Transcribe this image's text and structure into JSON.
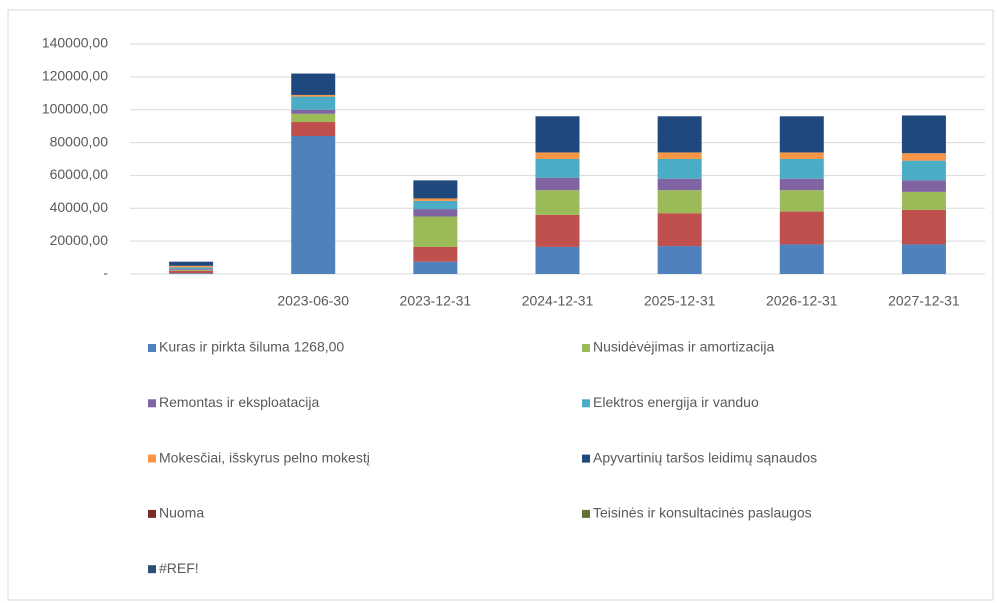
{
  "chart_data": {
    "type": "stacked_bar",
    "categories": [
      null,
      "2023-06-30",
      "2023-12-31",
      "2024-12-31",
      "2025-12-31",
      "2026-12-31",
      "2027-12-31"
    ],
    "series": [
      {
        "name": "Kuras ir pirkta šiluma  1268,00",
        "color": "#4f81bd",
        "values": [
          500,
          84000,
          7500,
          16500,
          17000,
          18000,
          18000
        ]
      },
      {
        "color": "#c0504d",
        "values": [
          1500,
          8500,
          9000,
          19500,
          20000,
          20000,
          21000
        ]
      },
      {
        "name": "Nusidėvėjimas ir amortizacija",
        "color": "#9bbb59",
        "values": [
          500,
          5000,
          18500,
          15000,
          14000,
          13000,
          11000
        ]
      },
      {
        "name": "Remontas ir eksploatacija",
        "color": "#8064a2",
        "values": [
          500,
          2500,
          4500,
          7500,
          7000,
          7000,
          7000
        ]
      },
      {
        "name": "Elektros energija ir vanduo",
        "color": "#4bacc6",
        "values": [
          1000,
          8000,
          5000,
          11500,
          12000,
          12000,
          12000
        ]
      },
      {
        "name": "Mokesčiai, išskyrus pelno mokestį",
        "color": "#f79646",
        "values": [
          1000,
          1000,
          1500,
          4000,
          4000,
          4000,
          4500
        ]
      },
      {
        "name": "Apyvartinių taršos leidimų sąnaudos",
        "color": "#1f497d",
        "values": [
          2500,
          13000,
          11000,
          22000,
          22000,
          22000,
          23000
        ]
      },
      {
        "name": "Nuoma",
        "color": "#772c2a",
        "values": [
          0,
          0,
          0,
          0,
          0,
          0,
          0
        ]
      },
      {
        "name": "Teisinės ir konsultacinės paslaugos",
        "color": "#5f7530",
        "values": [
          0,
          0,
          0,
          0,
          0,
          0,
          0
        ]
      },
      {
        "name": "#REF!",
        "color": "#2c4d75",
        "values": [
          0,
          0,
          0,
          0,
          0,
          0,
          0
        ]
      }
    ],
    "ylim": [
      0,
      140000
    ],
    "yticks": [
      {
        "value": 0,
        "label": "-"
      },
      {
        "value": 20000,
        "label": "20000,00"
      },
      {
        "value": 40000,
        "label": "40000,00"
      },
      {
        "value": 60000,
        "label": "60000,00"
      },
      {
        "value": 80000,
        "label": "80000,00"
      },
      {
        "value": 100000,
        "label": "100000,00"
      },
      {
        "value": 120000,
        "label": "120000,00"
      },
      {
        "value": 140000,
        "label": "140000,00"
      }
    ],
    "grid": true
  }
}
